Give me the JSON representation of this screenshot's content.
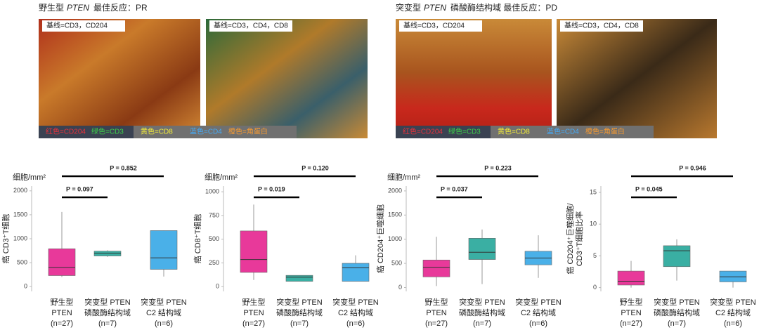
{
  "panels": [
    {
      "prefix": "野生型",
      "gene": "PTEN",
      "suffix": "最佳反应：PR",
      "images": [
        "基线=CD3，CD204",
        "基线=CD3，CD4，CD8"
      ],
      "legend": [
        {
          "text": "红色=CD204",
          "color": "#e8323c"
        },
        {
          "text": "绿色=CD3",
          "color": "#3ccf4a"
        },
        {
          "text": "黄色=CD8",
          "color": "#f2ec3a"
        },
        {
          "text": "蓝色=CD4",
          "color": "#46aaf5"
        },
        {
          "text": "橙色=角蛋白",
          "color": "#f59a32"
        }
      ]
    },
    {
      "prefix": "突变型",
      "gene": "PTEN",
      "suffix": "磷酸酶结构域 最佳反应：PD",
      "images": [
        "基线=CD3，CD204",
        "基线=CD3，CD4，CD8"
      ],
      "legend": [
        {
          "text": "红色=CD204",
          "color": "#e8323c"
        },
        {
          "text": "绿色=CD3",
          "color": "#3ccf4a"
        },
        {
          "text": "黄色=CD8",
          "color": "#f2ec3a"
        },
        {
          "text": "蓝色=CD4",
          "color": "#46aaf5"
        },
        {
          "text": "橙色=角蛋白",
          "color": "#f59a32"
        }
      ]
    }
  ],
  "chart_data": [
    {
      "type": "box",
      "unit": "细胞/mm²",
      "ylabel": [
        "癌 CD3⁺T细胞"
      ],
      "categories": [
        [
          "野生型",
          "PTEN",
          "(n=27)"
        ],
        [
          "突变型 PTEN",
          "磷酸酶结构域",
          "(n=7)"
        ],
        [
          "突变型 PTEN",
          "C2 结构域",
          "(n=6)"
        ]
      ],
      "colors": [
        "#e8399a",
        "#3aafa3",
        "#4ab0e8"
      ],
      "boxes": [
        {
          "min": 200,
          "q1": 230,
          "median": 400,
          "q3": 790,
          "max": 1560
        },
        {
          "min": 620,
          "q1": 640,
          "median": 700,
          "q3": 740,
          "max": 760
        },
        {
          "min": 210,
          "q1": 360,
          "median": 600,
          "q3": 1170,
          "max": 1170
        }
      ],
      "annotations": [
        "P = 0.097",
        "P = 0.852"
      ],
      "ylim": [
        -100,
        2100
      ],
      "yticks": [
        0,
        500,
        1000,
        1500,
        2000
      ]
    },
    {
      "type": "box",
      "unit": "细胞/mm²",
      "ylabel": [
        "癌 CD8⁺T细胞"
      ],
      "categories": [
        [
          "野生型",
          "PTEN",
          "(n=27)"
        ],
        [
          "突变型 PTEN",
          "磷酸酶结构域",
          "(n=7)"
        ],
        [
          "突变型 PTEN",
          "C2 结构域",
          "(n=6)"
        ]
      ],
      "colors": [
        "#e8399a",
        "#3aafa3",
        "#4ab0e8"
      ],
      "boxes": [
        {
          "min": 70,
          "q1": 150,
          "median": 286,
          "q3": 587,
          "max": 865
        },
        {
          "min": 56,
          "q1": 56,
          "median": 100,
          "q3": 119,
          "max": 119
        },
        {
          "min": 56,
          "q1": 56,
          "median": 198,
          "q3": 246,
          "max": 330
        }
      ],
      "annotations": [
        "P = 0.019",
        "P = 0.120"
      ],
      "ylim": [
        -50,
        1060
      ],
      "yticks": [
        0,
        250,
        500,
        750,
        1000
      ]
    },
    {
      "type": "box",
      "unit": "细胞/mm²",
      "ylabel": [
        "癌 CD204⁺巨噬细胞"
      ],
      "categories": [
        [
          "野生型",
          "PTEN",
          "(n=27)"
        ],
        [
          "突变型 PTEN",
          "磷酸酶结构域",
          "(n=7)"
        ],
        [
          "突变型 PTEN",
          "C2 结构域",
          "(n=6)"
        ]
      ],
      "colors": [
        "#e8399a",
        "#3aafa3",
        "#4ab0e8"
      ],
      "boxes": [
        {
          "min": 30,
          "q1": 220,
          "median": 420,
          "q3": 570,
          "max": 1050
        },
        {
          "min": 70,
          "q1": 580,
          "median": 730,
          "q3": 1020,
          "max": 1200
        },
        {
          "min": 200,
          "q1": 470,
          "median": 610,
          "q3": 750,
          "max": 1080
        }
      ],
      "annotations": [
        "P = 0.037",
        "P = 0.223"
      ],
      "ylim": [
        -80,
        2100
      ],
      "yticks": [
        0,
        500,
        1000,
        1500,
        2000
      ]
    },
    {
      "type": "box",
      "ylabel": [
        "癌 CD204⁺巨噬细胞/",
        "CD3⁺T细胞比率"
      ],
      "categories": [
        [
          "野生型",
          "PTEN",
          "(n=27)"
        ],
        [
          "突变型 PTEN",
          "磷酸酶结构域",
          "(n=7)"
        ],
        [
          "突变型 PTEN",
          "C2 结构域",
          "(n=6)"
        ]
      ],
      "colors": [
        "#e8399a",
        "#3aafa3",
        "#4ab0e8"
      ],
      "boxes": [
        {
          "min": 0,
          "q1": 0.4,
          "median": 1.0,
          "q3": 2.6,
          "max": 4.2
        },
        {
          "min": 1.1,
          "q1": 3.3,
          "median": 5.8,
          "q3": 6.6,
          "max": 7.6
        },
        {
          "min": 0,
          "q1": 0.9,
          "median": 1.7,
          "q3": 2.6,
          "max": 2.6
        }
      ],
      "annotations": [
        "P = 0.045",
        "P = 0.946"
      ],
      "ylim": [
        -0.6,
        16
      ],
      "yticks": [
        0,
        5,
        10,
        15
      ]
    }
  ]
}
